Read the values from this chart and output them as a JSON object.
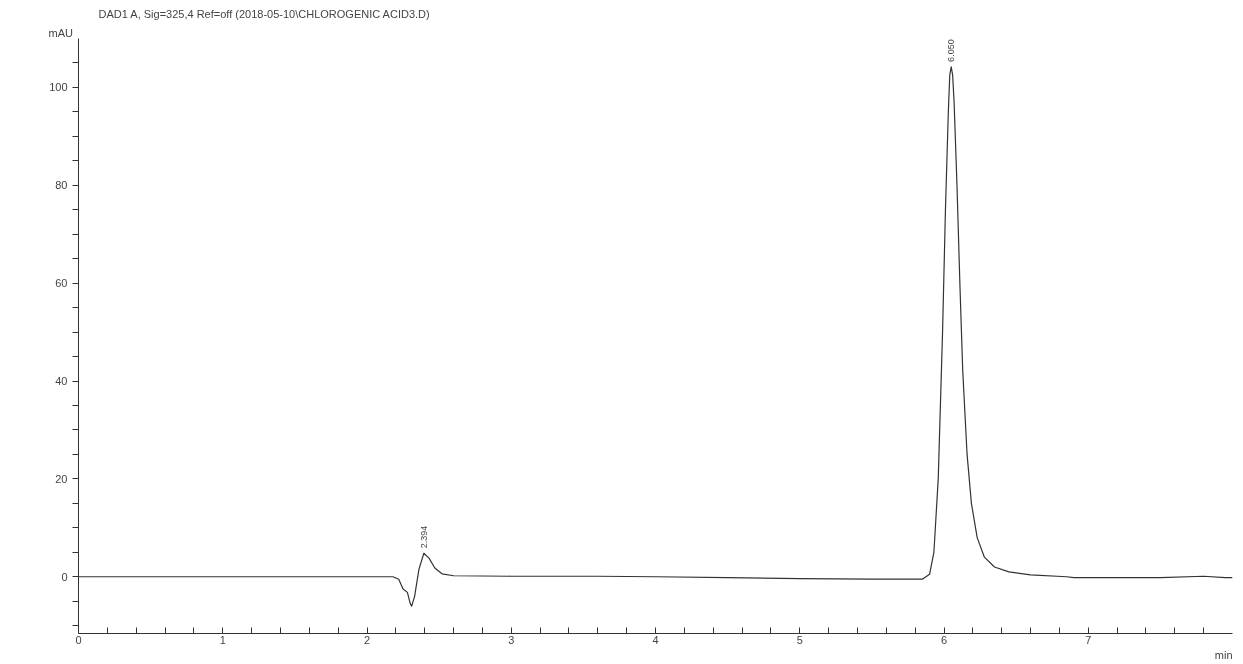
{
  "chart_data": {
    "type": "line",
    "title": "DAD1 A, Sig=325,4 Ref=off (2018-05-10\\CHLOROGENIC ACID3.D)",
    "xlabel": "min",
    "ylabel": "mAU",
    "xlim": [
      0,
      8.0
    ],
    "ylim": [
      -11.6,
      110
    ],
    "xticks": [
      0,
      {
        "value": 0.2,
        "label": null
      },
      {
        "value": 0.4,
        "label": null
      },
      {
        "value": 0.6,
        "label": null
      },
      {
        "value": 0.8,
        "label": null
      },
      1,
      {
        "value": 1.2,
        "label": null
      },
      {
        "value": 1.4,
        "label": null
      },
      {
        "value": 1.6,
        "label": null
      },
      {
        "value": 1.8,
        "label": null
      },
      2,
      {
        "value": 2.2,
        "label": null
      },
      {
        "value": 2.4,
        "label": null
      },
      {
        "value": 2.6,
        "label": null
      },
      {
        "value": 2.8,
        "label": null
      },
      3,
      {
        "value": 3.2,
        "label": null
      },
      {
        "value": 3.4,
        "label": null
      },
      {
        "value": 3.6,
        "label": null
      },
      {
        "value": 3.8,
        "label": null
      },
      4,
      {
        "value": 4.2,
        "label": null
      },
      {
        "value": 4.4,
        "label": null
      },
      {
        "value": 4.6,
        "label": null
      },
      {
        "value": 4.8,
        "label": null
      },
      5,
      {
        "value": 5.2,
        "label": null
      },
      {
        "value": 5.4,
        "label": null
      },
      {
        "value": 5.6,
        "label": null
      },
      {
        "value": 5.8,
        "label": null
      },
      6,
      {
        "value": 6.2,
        "label": null
      },
      {
        "value": 6.4,
        "label": null
      },
      {
        "value": 6.6,
        "label": null
      },
      {
        "value": 6.8,
        "label": null
      },
      7,
      {
        "value": 7.2,
        "label": null
      },
      {
        "value": 7.4,
        "label": null
      },
      {
        "value": 7.6,
        "label": null
      },
      {
        "value": 7.8,
        "label": null
      }
    ],
    "yticks": [
      {
        "value": -10,
        "label": null
      },
      {
        "value": -5,
        "label": null
      },
      0,
      {
        "value": 5,
        "label": null
      },
      {
        "value": 10,
        "label": null
      },
      {
        "value": 15,
        "label": null
      },
      20,
      {
        "value": 25,
        "label": null
      },
      {
        "value": 30,
        "label": null
      },
      {
        "value": 35,
        "label": null
      },
      40,
      {
        "value": 45,
        "label": null
      },
      {
        "value": 50,
        "label": null
      },
      {
        "value": 55,
        "label": null
      },
      60,
      {
        "value": 65,
        "label": null
      },
      {
        "value": 70,
        "label": null
      },
      {
        "value": 75,
        "label": null
      },
      80,
      {
        "value": 85,
        "label": null
      },
      {
        "value": 90,
        "label": null
      },
      {
        "value": 95,
        "label": null
      },
      100,
      {
        "value": 105,
        "label": null
      }
    ],
    "annotations": [
      {
        "text": "2.394",
        "x": 2.394,
        "y": 4.8
      },
      {
        "text": "6.050",
        "x": 6.05,
        "y": 104.2
      }
    ],
    "series": [
      {
        "color": "#333333",
        "x": [
          0,
          1.0,
          2.0,
          2.18,
          2.22,
          2.25,
          2.28,
          2.3,
          2.31,
          2.33,
          2.36,
          2.394,
          2.43,
          2.47,
          2.52,
          2.6,
          3.0,
          3.6,
          4.0,
          4.5,
          5.0,
          5.5,
          5.85,
          5.9,
          5.93,
          5.96,
          5.99,
          6.01,
          6.03,
          6.04,
          6.05,
          6.06,
          6.07,
          6.09,
          6.11,
          6.13,
          6.16,
          6.19,
          6.23,
          6.28,
          6.35,
          6.45,
          6.6,
          6.85,
          6.9,
          7.0,
          7.5,
          7.8,
          7.95,
          8.0
        ],
        "values": [
          0,
          0,
          0,
          0,
          -0.5,
          -2.5,
          -3.2,
          -5.5,
          -6.0,
          -4.0,
          1.5,
          4.8,
          3.8,
          1.8,
          0.6,
          0.2,
          0.1,
          0.1,
          0,
          -0.2,
          -0.4,
          -0.5,
          -0.5,
          0.5,
          5,
          20,
          50,
          75,
          95,
          102.5,
          104.2,
          102.5,
          97,
          80,
          60,
          42,
          25,
          15,
          8,
          4,
          2,
          1,
          0.4,
          0,
          -0.2,
          -0.2,
          -0.2,
          0.1,
          -0.2,
          -0.2
        ]
      }
    ]
  }
}
